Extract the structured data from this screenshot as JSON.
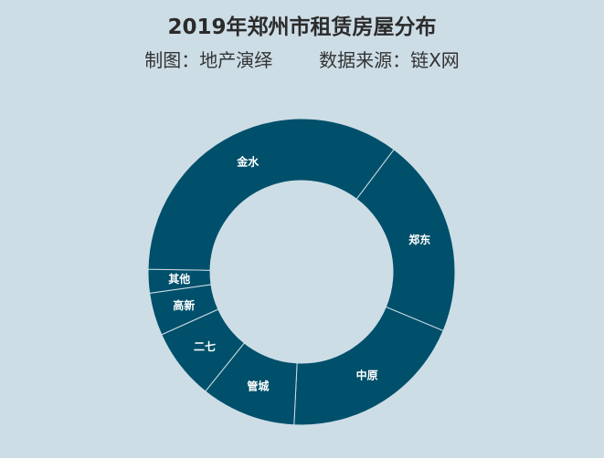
{
  "chart_data": {
    "type": "pie",
    "title": "2019年郑州市租赁房屋分布",
    "subtitle_left": "制图：地产演绎",
    "subtitle_right": "数据来源：链X网",
    "donut": true,
    "start_angle_deg": 37,
    "categories": [
      "郑东",
      "中原",
      "管城",
      "二七",
      "高新",
      "其他",
      "金水"
    ],
    "values": [
      21,
      19.5,
      10,
      7.5,
      4.5,
      2.5,
      35
    ],
    "colors": {
      "segment": "#00506b",
      "separator": "#cddde6",
      "background": "#cddde6"
    }
  }
}
